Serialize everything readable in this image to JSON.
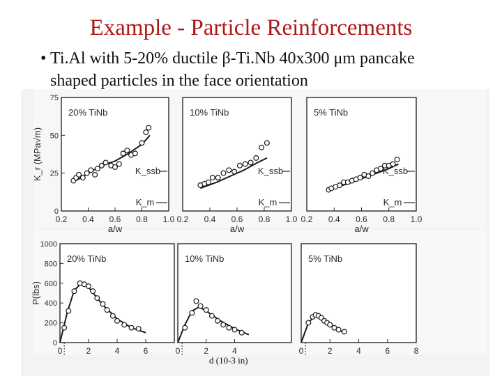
{
  "slide": {
    "title": "Example - Particle Reinforcements",
    "bullet_line1": "Ti.Al with 5-20% ductile β-Ti.Nb 40x300 μm pancake",
    "bullet_line2": "shaped particles in the face orientation",
    "x_caption": "d (10-3 in)",
    "bullet_symbol": "•"
  },
  "colors": {
    "title": "#b01818",
    "ink": "#2a2a2a"
  },
  "chart_data": [
    {
      "type": "scatter",
      "panel": "top-left",
      "label": "20% TiNb",
      "ylabel": "K_r (MPa√m)",
      "xlabel": "a/w",
      "xlim": [
        0.2,
        1.0
      ],
      "ylim": [
        0,
        75
      ],
      "xticks": [
        "0.2",
        "0.4",
        "0.6",
        "0.8",
        "1.0"
      ],
      "yticks": [
        "0",
        "25",
        "50",
        "75"
      ],
      "x": [
        0.29,
        0.31,
        0.33,
        0.36,
        0.39,
        0.42,
        0.45,
        0.47,
        0.5,
        0.53,
        0.57,
        0.6,
        0.63,
        0.66,
        0.69,
        0.72,
        0.75,
        0.8,
        0.83,
        0.85
      ],
      "y": [
        20,
        22,
        24,
        22,
        25,
        27,
        24,
        28,
        30,
        32,
        30,
        29,
        31,
        38,
        40,
        37,
        38,
        45,
        52,
        55
      ],
      "curve_x": [
        0.28,
        0.35,
        0.42,
        0.5,
        0.6,
        0.7,
        0.8,
        0.86
      ],
      "curve_y": [
        19,
        22,
        26,
        30,
        33,
        38,
        44,
        50
      ],
      "annotations": [
        "K_ssb",
        "K_m"
      ]
    },
    {
      "type": "scatter",
      "panel": "top-middle",
      "label": "10% TiNb",
      "xlabel": "a/w",
      "xlim": [
        0.2,
        1.0
      ],
      "ylim": [
        0,
        75
      ],
      "xticks": [
        "0.2",
        "0.4",
        "0.6",
        "0.8",
        "1.0"
      ],
      "x": [
        0.33,
        0.36,
        0.39,
        0.42,
        0.46,
        0.5,
        0.54,
        0.58,
        0.62,
        0.66,
        0.7,
        0.74,
        0.78,
        0.82
      ],
      "y": [
        17,
        18,
        19,
        22,
        22,
        25,
        27,
        26,
        30,
        31,
        32,
        35,
        42,
        45
      ],
      "curve_x": [
        0.33,
        0.45,
        0.55,
        0.65,
        0.75,
        0.82
      ],
      "curve_y": [
        15,
        19,
        23,
        27,
        32,
        35
      ],
      "annotations": [
        "K_ssb",
        "K_m"
      ]
    },
    {
      "type": "scatter",
      "panel": "top-right",
      "label": "5% TiNb",
      "xlabel": "a/w",
      "xlim": [
        0.2,
        1.0
      ],
      "ylim": [
        0,
        75
      ],
      "xticks": [
        "0.2",
        "0.4",
        "0.6",
        "0.8",
        "1.0"
      ],
      "x": [
        0.36,
        0.38,
        0.41,
        0.44,
        0.47,
        0.5,
        0.53,
        0.56,
        0.59,
        0.62,
        0.65,
        0.68,
        0.71,
        0.74,
        0.77,
        0.8,
        0.83,
        0.86
      ],
      "y": [
        14,
        15,
        16,
        17,
        19,
        19,
        20,
        21,
        22,
        24,
        23,
        25,
        27,
        28,
        30,
        30,
        31,
        34
      ],
      "curve_x": [
        0.35,
        0.5,
        0.65,
        0.8,
        0.87
      ],
      "curve_y": [
        14,
        18,
        23,
        28,
        31
      ],
      "annotations": [
        "K_ssb",
        "K_m"
      ]
    },
    {
      "type": "line",
      "panel": "bottom-left",
      "label": "20% TiNb",
      "ylabel": "P(lbs)",
      "xlabel": "d (10-3 in)",
      "xlim": [
        0,
        8
      ],
      "ylim": [
        0,
        1000
      ],
      "xticks": [
        "0",
        "2",
        "4",
        "6"
      ],
      "yticks": [
        "0",
        "200",
        "400",
        "600",
        "800",
        "1000"
      ],
      "x": [
        0.3,
        0.6,
        1.0,
        1.4,
        1.7,
        2.0,
        2.3,
        2.6,
        3.0,
        3.3,
        3.7,
        4.0,
        4.5,
        5.0,
        5.5
      ],
      "y": [
        150,
        320,
        520,
        600,
        590,
        570,
        520,
        450,
        390,
        330,
        270,
        220,
        180,
        150,
        140
      ],
      "curve_x": [
        0,
        0.5,
        1.0,
        1.5,
        2.0,
        2.5,
        3.0,
        4.0,
        5.0,
        6.0
      ],
      "curve_y": [
        0,
        300,
        530,
        600,
        560,
        470,
        380,
        240,
        150,
        100
      ]
    },
    {
      "type": "line",
      "panel": "bottom-middle",
      "label": "10% TiNb",
      "xlabel": "d (10-3 in)",
      "xlim": [
        0,
        8
      ],
      "ylim": [
        0,
        1000
      ],
      "xticks": [
        "0",
        "2",
        "4"
      ],
      "x": [
        0.5,
        1.0,
        1.3,
        1.6,
        2.0,
        2.4,
        2.8,
        3.2,
        3.6,
        4.0,
        4.5
      ],
      "y": [
        150,
        300,
        420,
        370,
        330,
        270,
        220,
        180,
        150,
        130,
        100
      ],
      "curve_x": [
        0,
        0.5,
        1.0,
        1.5,
        2.0,
        3.0,
        4.0,
        5.0
      ],
      "curve_y": [
        0,
        180,
        320,
        360,
        320,
        220,
        140,
        80
      ]
    },
    {
      "type": "line",
      "panel": "bottom-right",
      "label": "5% TiNb",
      "xlabel": "d (10-3 in)",
      "xlim": [
        0,
        8
      ],
      "ylim": [
        0,
        1000
      ],
      "xticks": [
        "0",
        "2",
        "4",
        "6",
        "8"
      ],
      "x": [
        0.5,
        0.8,
        1.0,
        1.2,
        1.4,
        1.6,
        1.8,
        2.0,
        2.3,
        2.6,
        3.0
      ],
      "y": [
        200,
        260,
        280,
        270,
        250,
        220,
        200,
        180,
        150,
        130,
        110
      ],
      "curve_x": [
        0,
        0.5,
        1.0,
        1.5,
        2.0,
        2.5,
        3.0
      ],
      "curve_y": [
        0,
        200,
        280,
        240,
        180,
        130,
        100
      ]
    }
  ]
}
